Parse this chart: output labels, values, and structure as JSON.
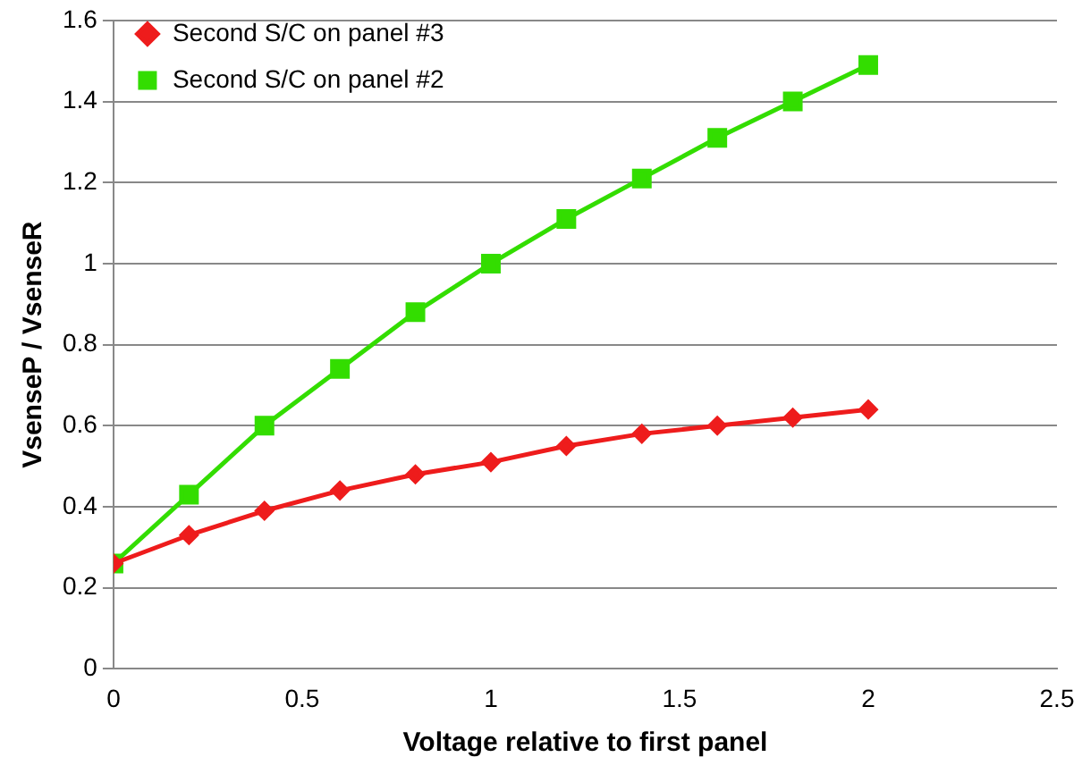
{
  "chart_data": {
    "type": "line",
    "xlabel": "Voltage relative to first panel",
    "ylabel": "VsenseP / VsenseR",
    "x": [
      0,
      0.2,
      0.4,
      0.6,
      0.8,
      1,
      1.2,
      1.4,
      1.6,
      1.8,
      2
    ],
    "series": [
      {
        "name": "Second S/C on panel #3",
        "color": "#ee1c1c",
        "marker": "diamond",
        "values": [
          0.26,
          0.33,
          0.39,
          0.44,
          0.48,
          0.51,
          0.55,
          0.58,
          0.6,
          0.62,
          0.64
        ]
      },
      {
        "name": "Second S/C on panel #2",
        "color": "#33dd00",
        "marker": "square",
        "values": [
          0.26,
          0.43,
          0.6,
          0.74,
          0.88,
          1.0,
          1.11,
          1.21,
          1.31,
          1.4,
          1.49
        ]
      }
    ],
    "xlim": [
      0,
      2.5
    ],
    "xticks": [
      0,
      0.5,
      1,
      1.5,
      2,
      2.5
    ],
    "ylim": [
      0,
      1.6
    ],
    "yticks": [
      0,
      0.2,
      0.4,
      0.6,
      0.8,
      1,
      1.2,
      1.4,
      1.6
    ],
    "grid": "y",
    "legend": "top left",
    "line_style": "solid"
  }
}
